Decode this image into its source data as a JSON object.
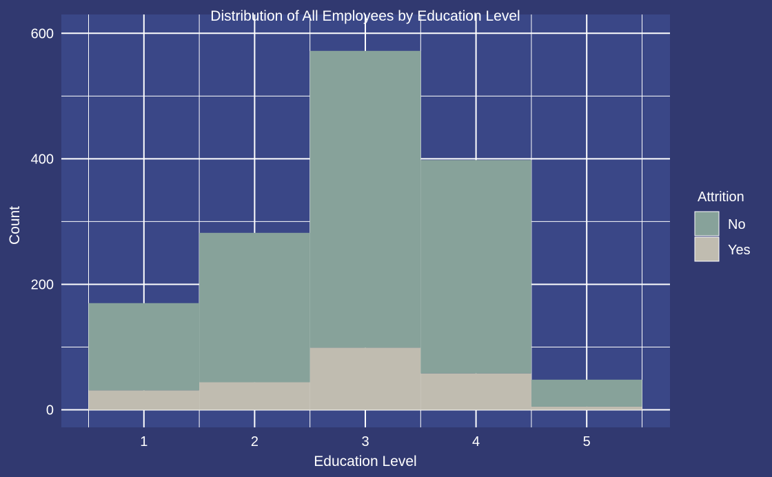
{
  "colors": {
    "background": "#313970",
    "panel": "#3a4787",
    "grid": "#ffffff",
    "text": "#ffffff"
  },
  "chart_data": {
    "type": "bar",
    "stacked": true,
    "title": "Distribution of All Employees by Education Level",
    "xlabel": "Education Level",
    "ylabel": "Count",
    "categories": [
      "1",
      "2",
      "3",
      "4",
      "5"
    ],
    "ylim": [
      -28,
      630
    ],
    "yticks": [
      0,
      200,
      400,
      600
    ],
    "series": [
      {
        "name": "Yes",
        "color": "#c0bcb0",
        "values": [
          31,
          44,
          99,
          58,
          5
        ]
      },
      {
        "name": "No",
        "color": "#87a29a",
        "values": [
          139,
          238,
          473,
          340,
          43
        ]
      }
    ],
    "legend": {
      "title": "Attrition",
      "position": "right",
      "items": [
        {
          "label": "No",
          "color": "#87a29a"
        },
        {
          "label": "Yes",
          "color": "#c0bcb0"
        }
      ]
    },
    "grid": true
  }
}
